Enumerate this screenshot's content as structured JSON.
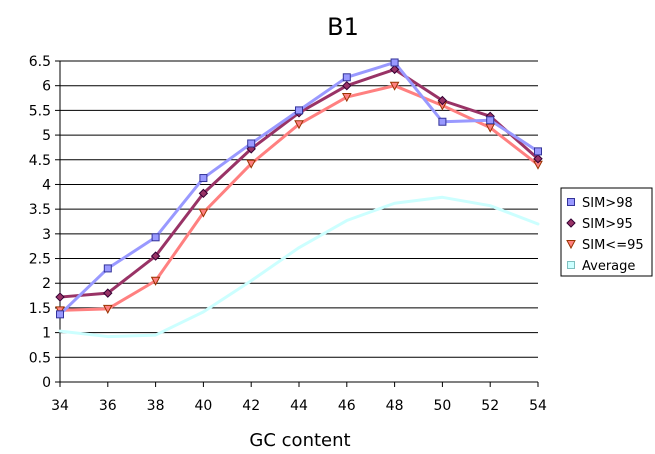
{
  "chart_data": {
    "type": "line",
    "title": "B1",
    "xlabel": "GC content",
    "ylabel": "",
    "x": [
      34,
      36,
      38,
      40,
      42,
      44,
      46,
      48,
      50,
      52,
      54
    ],
    "xlim": [
      34,
      54
    ],
    "ylim": [
      0,
      6.5
    ],
    "x_tick_labels": [
      "34",
      "36",
      "38",
      "40",
      "42",
      "44",
      "46",
      "48",
      "50",
      "52",
      "54"
    ],
    "y_ticks": [
      0,
      0.5,
      1,
      1.5,
      2,
      2.5,
      3,
      3.5,
      4,
      4.5,
      5,
      5.5,
      6,
      6.5
    ],
    "y_tick_labels": [
      "0",
      "0.5",
      "1",
      "1.5",
      "2",
      "2.5",
      "3",
      "3.5",
      "4",
      "4.5",
      "5",
      "5.5",
      "6",
      "6.5"
    ],
    "grid": "horizontal",
    "legend_position": "right",
    "series": [
      {
        "name": "SIM>98",
        "values": [
          1.37,
          2.3,
          2.93,
          4.13,
          4.83,
          5.5,
          6.17,
          6.47,
          5.27,
          5.3,
          4.67
        ],
        "line_color": "#9999FF",
        "marker": "square",
        "marker_fill": "#9999FF",
        "marker_edge": "#333399"
      },
      {
        "name": "SIM>95",
        "values": [
          1.72,
          1.8,
          2.55,
          3.82,
          4.72,
          5.45,
          6.0,
          6.33,
          5.7,
          5.38,
          4.52
        ],
        "line_color": "#993366",
        "marker": "diamond",
        "marker_fill": "#993366",
        "marker_edge": "#330033"
      },
      {
        "name": "SIM<=95",
        "values": [
          1.45,
          1.48,
          2.05,
          3.43,
          4.42,
          5.22,
          5.77,
          6.0,
          5.6,
          5.15,
          4.4
        ],
        "line_color": "#FF8080",
        "marker": "triangle-down",
        "marker_fill": "#FF8080",
        "marker_edge": "#993300"
      },
      {
        "name": "Average",
        "values": [
          1.03,
          0.92,
          0.95,
          1.42,
          2.05,
          2.72,
          3.27,
          3.62,
          3.74,
          3.57,
          3.2
        ],
        "line_color": "#CCFFFF",
        "marker": "none"
      }
    ]
  }
}
